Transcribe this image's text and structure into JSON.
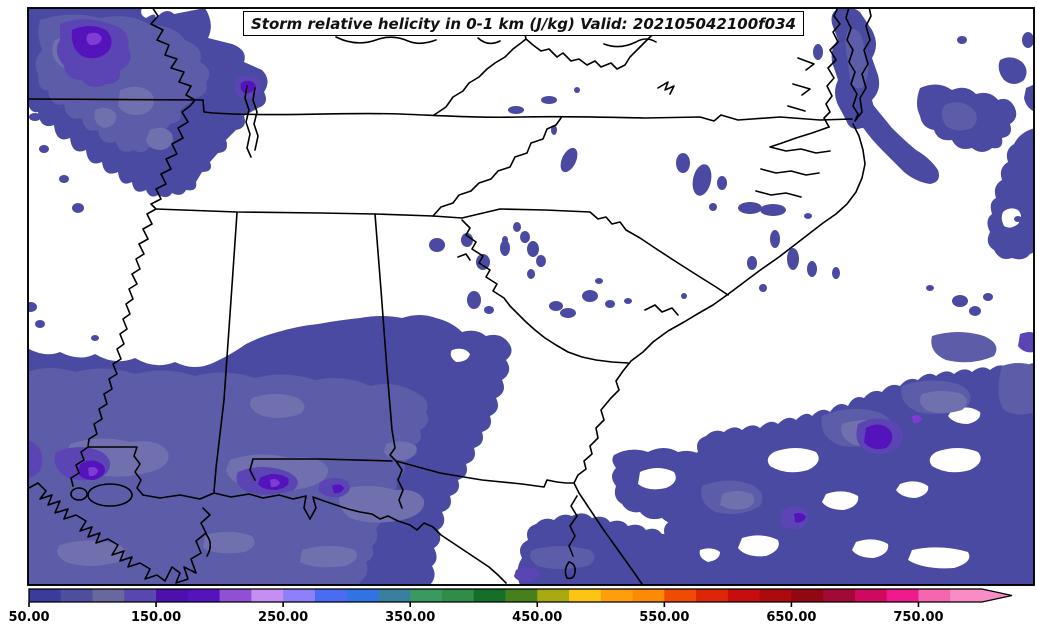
{
  "title": {
    "text": "Storm relative helicity in 0-1 km (J/kg) Valid: 202105042100f034"
  },
  "colorbar": {
    "min": 50,
    "max": 800,
    "interval": 25,
    "extend": "max",
    "outline_color": "#000000",
    "ticks": [
      "50.00",
      "150.00",
      "250.00",
      "350.00",
      "450.00",
      "550.00",
      "650.00",
      "750.00"
    ],
    "tick_values": [
      50,
      150,
      250,
      350,
      450,
      550,
      650,
      750
    ],
    "colors": [
      "#3b3b9b",
      "#4e4e9e",
      "#68689f",
      "#5747ae",
      "#4b10ae",
      "#5513bd",
      "#9150d4",
      "#c48ef2",
      "#8d80fa",
      "#4a6cf5",
      "#3273e3",
      "#38809e",
      "#399a60",
      "#2f8c49",
      "#156f28",
      "#45801c",
      "#a8aa10",
      "#fdc513",
      "#ff9d0a",
      "#fb8a05",
      "#f04a05",
      "#dd2606",
      "#c70e0e",
      "#ad0a10",
      "#920812",
      "#a30936",
      "#d00960",
      "#f01a8e",
      "#f566b0",
      "#f98cc4"
    ],
    "arrow_color": "#f98cc4"
  },
  "map": {
    "background": "#ffffff",
    "border_color": "#000000",
    "palette": {
      "c50": "#4a4aa2",
      "c75": "#5c5ca8",
      "c100": "#7170ae",
      "c125": "#5b44b4",
      "c150": "#5413bb",
      "c175": "#7e3bd6"
    }
  },
  "chart_data": {
    "type": "heatmap",
    "subtype": "filled-contour weather map",
    "title": "Storm relative helicity in 0-1 km (J/kg) Valid: 202105042100f034",
    "variable": "Storm relative helicity 0-1 km",
    "units": "J/kg",
    "valid_time": "202105042100",
    "forecast_hour": "f034",
    "region": "Southeastern United States, Missouri/Arkansas and Louisiana east to the Atlantic coast",
    "legend_position": "bottom horizontal colorbar with right-pointing extension arrow",
    "colorbar_levels": [
      50,
      75,
      100,
      125,
      150,
      175,
      200,
      225,
      250,
      275,
      300,
      325,
      350,
      375,
      400,
      425,
      450,
      475,
      500,
      525,
      550,
      575,
      600,
      625,
      650,
      675,
      700,
      725,
      750,
      775,
      800
    ],
    "colorbar_tick_labels": [
      "50.00",
      "150.00",
      "250.00",
      "350.00",
      "450.00",
      "550.00",
      "650.00",
      "750.00"
    ],
    "field_summary": [
      {
        "area": "northeast Arkansas / southeast Missouri",
        "values_Jkg": "50-200+",
        "note": "large maximum with purple core ~150-200"
      },
      {
        "area": "central Gulf Coast band (Louisiana, Mississippi, Alabama, Florida panhandle, southwest Georgia)",
        "values_Jkg": "50-200",
        "note": "cores 150-200 near Louisiana and Alabama coasts"
      },
      {
        "area": "Tennessee Valley, Carolinas, Georgia interior",
        "values_Jkg": "50-75",
        "note": "scattered small patches"
      },
      {
        "area": "Atlantic waters off the Carolinas and Georgia",
        "values_Jkg": "50-200",
        "note": "broad offshore maxima, core ~150-200 southeast of the coast"
      },
      {
        "area": "Chesapeake Bay / Virginia Tidewater",
        "values_Jkg": "50-100",
        "note": "elongated patch along the bay"
      }
    ]
  }
}
